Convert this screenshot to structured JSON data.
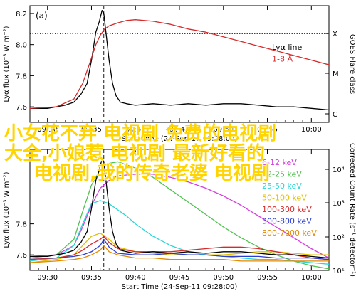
{
  "overlay": {
    "lines": [
      "小女花不弃 电视剧 免费的电视剧",
      "大全,小娘惹 电视剧 最新好看的",
      "电视剧,我的传奇老婆 电视剧"
    ],
    "color": "#ffd400"
  },
  "chart_data": [
    {
      "type": "line",
      "panel_label": "(a)",
      "xlabel": "Start Time (24-Sep-11 09:28:00)",
      "ylabel": "Lyα flux (10^-3 W m^-2)",
      "y2label": "GOES Flare class",
      "x_ticks": [
        "09:30",
        "09:35",
        "09:40",
        "09:45",
        "09:50",
        "09:55",
        "10:00"
      ],
      "y_ticks": [
        "7.6",
        "7.8",
        "8.0",
        "8.2"
      ],
      "y_tick_values": [
        7.6,
        7.8,
        8.0,
        8.2
      ],
      "ylim": [
        7.5,
        8.25
      ],
      "y2_ticks": [
        "X",
        "M",
        "C"
      ],
      "xlim_minutes": [
        0,
        34
      ],
      "vline_minute": 8.4,
      "hline_y": 8.07,
      "legend": {
        "position": "top-right",
        "entries": [
          {
            "name": "Lyα line",
            "color": "#000000"
          },
          {
            "name": "1-8 Å",
            "color": "#d62a2a"
          }
        ]
      },
      "series": [
        {
          "name": "Lyα line",
          "color": "#000000",
          "x": [
            0,
            1,
            2,
            3,
            4,
            5,
            5.8,
            6.5,
            7,
            7.5,
            7.9,
            8.2,
            8.4,
            8.7,
            9,
            9.4,
            9.8,
            10.3,
            11,
            12,
            14,
            16,
            18,
            20,
            22,
            24,
            26,
            28,
            30,
            32,
            34
          ],
          "y": [
            7.59,
            7.59,
            7.59,
            7.6,
            7.61,
            7.63,
            7.68,
            7.75,
            7.9,
            8.08,
            8.15,
            8.22,
            8.2,
            8.05,
            7.9,
            7.75,
            7.67,
            7.63,
            7.62,
            7.61,
            7.62,
            7.61,
            7.62,
            7.61,
            7.62,
            7.62,
            7.61,
            7.6,
            7.6,
            7.59,
            7.58
          ]
        },
        {
          "name": "1-8 Å",
          "color": "#d62a2a",
          "x": [
            0,
            3,
            5,
            6,
            6.8,
            7.5,
            8,
            8.5,
            9,
            10,
            11,
            12,
            14,
            16,
            18,
            20,
            22,
            24,
            26,
            28,
            30,
            32,
            34
          ],
          "y": [
            7.59,
            7.6,
            7.65,
            7.75,
            7.88,
            8.0,
            8.06,
            8.1,
            8.12,
            8.14,
            8.155,
            8.16,
            8.15,
            8.13,
            8.1,
            8.08,
            8.05,
            8.02,
            7.99,
            7.96,
            7.93,
            7.9,
            7.87
          ]
        }
      ]
    },
    {
      "type": "line",
      "xlabel": "Start Time (24-Sep-11 09:28:00)",
      "ylabel": "Lyα flux (10^-3 W m^-2)",
      "y2label": "Corrected Count Rate (s^-1 detector^-1)",
      "x_ticks": [
        "09:30",
        "09:35",
        "09:40",
        "09:45",
        "09:50",
        "09:55",
        "10:00"
      ],
      "y_ticks": [
        "7.6",
        "7.8"
      ],
      "y_tick_values": [
        7.6,
        7.8
      ],
      "ylim": [
        7.5,
        8.28
      ],
      "y2_ticks": [
        "10^4",
        "10^3",
        "10^2",
        "10^1"
      ],
      "xlim_minutes": [
        0,
        34
      ],
      "vline_minute": 8.4,
      "legend": {
        "position": "top-right",
        "entries": [
          {
            "name": "6-12 keV",
            "color": "#d63ce0"
          },
          {
            "name": "12-25 keV",
            "color": "#4fc24f"
          },
          {
            "name": "25-50 keV",
            "color": "#28d6d6"
          },
          {
            "name": "50-100 keV",
            "color": "#e0c000"
          },
          {
            "name": "100-300 keV",
            "color": "#d62a2a"
          },
          {
            "name": "300-800 keV",
            "color": "#2d3fcf"
          },
          {
            "name": "800-7000 keV",
            "color": "#e38a00"
          }
        ]
      },
      "series": [
        {
          "name": "6-12 keV",
          "color": "#d63ce0",
          "x": [
            0,
            3,
            5,
            6,
            7,
            8,
            9,
            10,
            12,
            14,
            16,
            18,
            20,
            22,
            24,
            26,
            28,
            30,
            32,
            34
          ],
          "y": [
            7.59,
            7.6,
            7.66,
            7.78,
            7.92,
            8.03,
            8.08,
            8.11,
            8.12,
            8.12,
            8.1,
            8.07,
            8.03,
            7.98,
            7.92,
            7.85,
            7.78,
            7.71,
            7.64,
            7.58
          ]
        },
        {
          "name": "12-25 keV",
          "color": "#4fc24f",
          "x": [
            0,
            3,
            5,
            6,
            7,
            8,
            9,
            10,
            12,
            14,
            16,
            18,
            20,
            22,
            24,
            26,
            28,
            30,
            32,
            34
          ],
          "y": [
            7.58,
            7.6,
            7.7,
            7.88,
            8.05,
            8.15,
            8.19,
            8.2,
            8.16,
            8.1,
            8.02,
            7.94,
            7.86,
            7.78,
            7.71,
            7.65,
            7.6,
            7.56,
            7.53,
            7.51
          ]
        },
        {
          "name": "25-50 keV",
          "color": "#28d6d6",
          "x": [
            0,
            3,
            5,
            6,
            7,
            8,
            9,
            10,
            11,
            12,
            14,
            16,
            18,
            20,
            22,
            24,
            26,
            28,
            30,
            32,
            34
          ],
          "y": [
            7.56,
            7.58,
            7.66,
            7.8,
            7.93,
            7.95,
            7.93,
            7.89,
            7.85,
            7.8,
            7.72,
            7.66,
            7.62,
            7.6,
            7.59,
            7.58,
            7.57,
            7.57,
            7.56,
            7.55,
            7.54
          ]
        },
        {
          "name": "50-100 keV",
          "color": "#e0c000",
          "x": [
            0,
            3,
            5,
            6,
            7,
            8,
            9,
            10,
            12,
            14,
            16,
            18,
            20,
            22,
            24,
            26,
            28,
            30,
            32,
            34
          ],
          "y": [
            7.55,
            7.57,
            7.6,
            7.66,
            7.72,
            7.74,
            7.7,
            7.65,
            7.62,
            7.61,
            7.6,
            7.6,
            7.6,
            7.6,
            7.61,
            7.62,
            7.62,
            7.61,
            7.6,
            7.6
          ]
        },
        {
          "name": "100-300 keV",
          "color": "#d62a2a",
          "x": [
            0,
            3,
            5,
            6,
            7,
            8,
            8.4,
            9,
            10,
            12,
            14,
            16,
            18,
            20,
            22,
            24,
            26,
            28,
            30,
            32,
            34
          ],
          "y": [
            7.57,
            7.58,
            7.6,
            7.63,
            7.67,
            7.7,
            7.72,
            7.68,
            7.64,
            7.62,
            7.62,
            7.62,
            7.63,
            7.64,
            7.65,
            7.65,
            7.64,
            7.62,
            7.6,
            7.58,
            7.57
          ]
        },
        {
          "name": "300-800 keV",
          "color": "#2d3fcf",
          "x": [
            0,
            3,
            5,
            6,
            7,
            8,
            8.4,
            9,
            10,
            12,
            14,
            16,
            18,
            20,
            22,
            24,
            26,
            28,
            30,
            32,
            34
          ],
          "y": [
            7.58,
            7.58,
            7.59,
            7.6,
            7.62,
            7.66,
            7.7,
            7.65,
            7.61,
            7.6,
            7.6,
            7.61,
            7.6,
            7.6,
            7.59,
            7.59,
            7.59,
            7.58,
            7.58,
            7.58,
            7.57
          ]
        },
        {
          "name": "800-7000 keV",
          "color": "#e38a00",
          "x": [
            0,
            3,
            5,
            6,
            7,
            8,
            8.4,
            9,
            10,
            12,
            14,
            16,
            18,
            20,
            22,
            24,
            26,
            28,
            30,
            32,
            34
          ],
          "y": [
            7.55,
            7.56,
            7.57,
            7.58,
            7.6,
            7.63,
            7.66,
            7.62,
            7.6,
            7.58,
            7.58,
            7.57,
            7.57,
            7.57,
            7.57,
            7.56,
            7.56,
            7.56,
            7.56,
            7.56,
            7.56
          ]
        },
        {
          "name": "Lyα line",
          "color": "#000000",
          "x": [
            0,
            1,
            2,
            3,
            4,
            5,
            5.8,
            6.5,
            7,
            7.5,
            7.9,
            8.2,
            8.4,
            8.7,
            9,
            9.4,
            9.8,
            10.3,
            11,
            12,
            14,
            16,
            18,
            20,
            22,
            24,
            26,
            28,
            30,
            32,
            34
          ],
          "y": [
            7.59,
            7.59,
            7.59,
            7.6,
            7.61,
            7.63,
            7.68,
            7.75,
            7.9,
            8.08,
            8.15,
            8.22,
            8.2,
            8.05,
            7.9,
            7.75,
            7.67,
            7.63,
            7.62,
            7.61,
            7.62,
            7.61,
            7.62,
            7.61,
            7.62,
            7.62,
            7.61,
            7.6,
            7.6,
            7.59,
            7.58
          ]
        }
      ]
    }
  ]
}
